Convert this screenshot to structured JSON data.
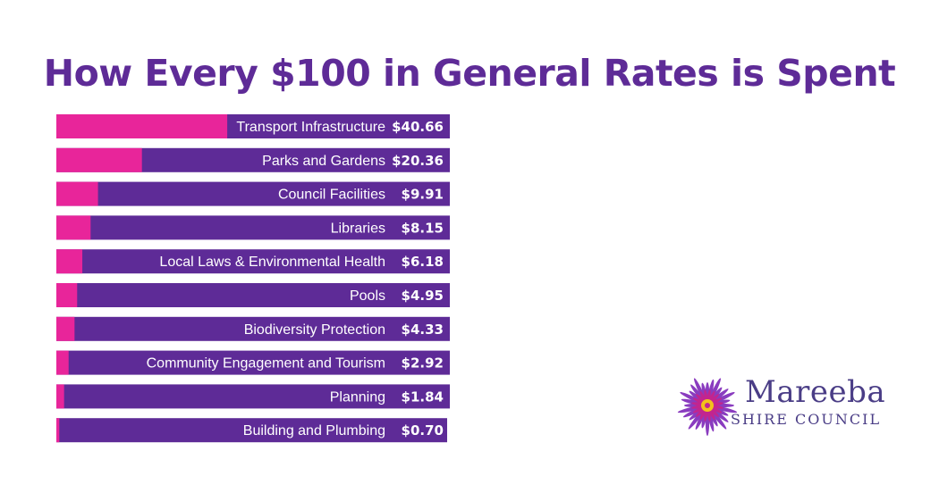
{
  "title": "How Every $100 in General Rates is Spent",
  "chart_data": {
    "type": "bar",
    "orientation": "horizontal",
    "title": "How Every $100 in General Rates is Spent",
    "categories": [
      "Transport Infrastructure",
      "Parks and Gardens",
      "Council Facilities",
      "Libraries",
      "Local Laws & Environmental Health",
      "Pools",
      "Biodiversity Protection",
      "Community Engagement and Tourism",
      "Planning",
      "Building and Plumbing"
    ],
    "values": [
      40.66,
      20.36,
      9.91,
      8.15,
      6.18,
      4.95,
      4.33,
      2.92,
      1.84,
      0.7
    ],
    "value_labels": [
      "$40.66",
      "$20.36",
      "$9.91",
      "$8.15",
      "$6.18",
      "$4.95",
      "$4.33",
      "$2.92",
      "$1.84",
      "$0.70"
    ],
    "xlim": [
      0,
      100
    ],
    "grid": false,
    "colors": {
      "fill": "#e8259a",
      "track": "#5e2b97"
    }
  },
  "logo": {
    "name": "Mareeba",
    "subtitle": "SHIRE COUNCIL",
    "colors": {
      "text": "#4a3d86",
      "petals": "#8a3cbf",
      "petals_inner": "#c2258f",
      "center": "#f2c21b"
    }
  }
}
